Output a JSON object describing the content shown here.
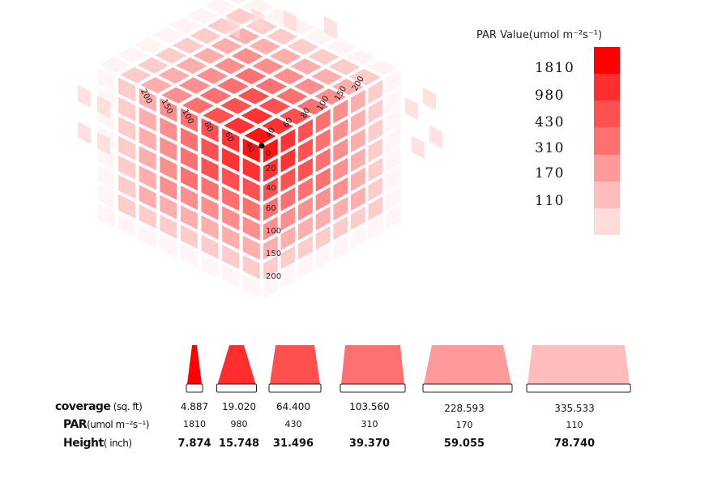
{
  "legend": {
    "title": "PAR Value(umol m⁻²s⁻¹)",
    "values": [
      "1810",
      "980",
      "430",
      "310",
      "170",
      "110"
    ],
    "colors": [
      "#ff0000",
      "#ff2e2e",
      "#ff5050",
      "#ff7070",
      "#ff9a9a",
      "#ffbcbc",
      "#ffdcdc"
    ]
  },
  "cube": {
    "left_axis_ticks": [
      "200",
      "150",
      "100",
      "80",
      "60",
      "40"
    ],
    "right_axis_ticks": [
      "40",
      "60",
      "80",
      "100",
      "150",
      "200"
    ],
    "vertical_axis_ticks": [
      "0",
      "20",
      "40",
      "60",
      "100",
      "150",
      "200"
    ]
  },
  "table": {
    "row_labels": {
      "coverage": {
        "name": "coverage",
        "unit": " (sq. ft)"
      },
      "par": {
        "name": "PAR",
        "unit": "(umol m⁻²s⁻¹)"
      },
      "height": {
        "name": "Height",
        "unit": "( inch)"
      }
    },
    "columns": [
      {
        "coverage": "4.887",
        "par": "1810",
        "height": "7.874",
        "color": "#ff0000"
      },
      {
        "coverage": "19.020",
        "par": "980",
        "height": "15.748",
        "color": "#ff2e2e"
      },
      {
        "coverage": "64.400",
        "par": "430",
        "height": "31.496",
        "color": "#ff5050"
      },
      {
        "coverage": "103.560",
        "par": "310",
        "height": "39.370",
        "color": "#ff7070"
      },
      {
        "coverage": "228.593",
        "par": "170",
        "height": "59.055",
        "color": "#ff9a9a"
      },
      {
        "coverage": "335.533",
        "par": "110",
        "height": "78.740",
        "color": "#ffbcbc"
      }
    ]
  }
}
